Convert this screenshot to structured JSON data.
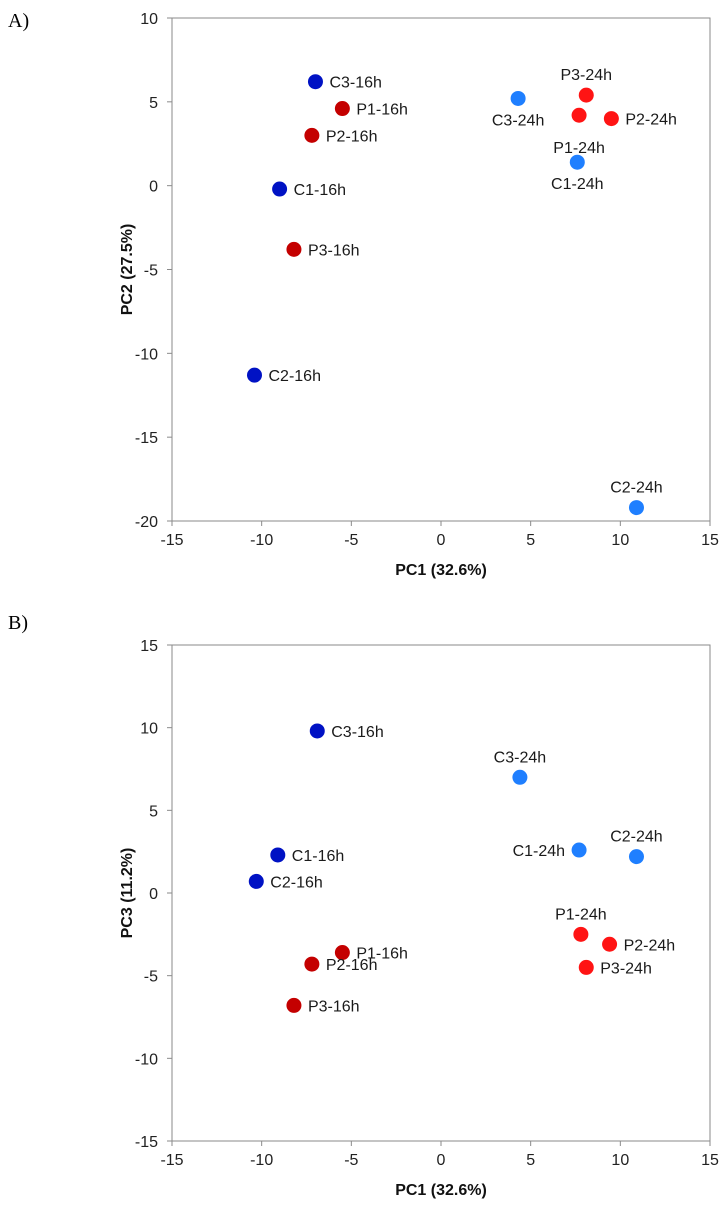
{
  "colors": {
    "control_16h": "#0012c4",
    "control_24h": "#1f7fff",
    "treated_16h": "#c40000",
    "treated_24h": "#ff1414",
    "axis": "#8a8a8a"
  },
  "chart_data": [
    {
      "type": "scatter",
      "panel_label": "A)",
      "title": "",
      "xlabel": "PC1 (32.6%)",
      "ylabel": "PC2 (27.5%)",
      "xlim": [
        -15,
        15
      ],
      "ylim": [
        -20,
        10
      ],
      "xticks": [
        -15,
        -10,
        -5,
        0,
        5,
        10,
        15
      ],
      "yticks": [
        -20,
        -15,
        -10,
        -5,
        0,
        5,
        10
      ],
      "grid": false,
      "legend": "none",
      "points": [
        {
          "label": "C3-16h",
          "x": -7.0,
          "y": 6.2,
          "color": "control_16h",
          "label_pos": "right"
        },
        {
          "label": "P1-16h",
          "x": -5.5,
          "y": 4.6,
          "color": "treated_16h",
          "label_pos": "right"
        },
        {
          "label": "P2-16h",
          "x": -7.2,
          "y": 3.0,
          "color": "treated_16h",
          "label_pos": "right"
        },
        {
          "label": "C1-16h",
          "x": -9.0,
          "y": -0.2,
          "color": "control_16h",
          "label_pos": "right"
        },
        {
          "label": "P3-16h",
          "x": -8.2,
          "y": -3.8,
          "color": "treated_16h",
          "label_pos": "right"
        },
        {
          "label": "C2-16h",
          "x": -10.4,
          "y": -11.3,
          "color": "control_16h",
          "label_pos": "right"
        },
        {
          "label": "C3-24h",
          "x": 4.3,
          "y": 5.2,
          "color": "control_24h",
          "label_pos": "below"
        },
        {
          "label": "P3-24h",
          "x": 8.1,
          "y": 5.4,
          "color": "treated_24h",
          "label_pos": "above"
        },
        {
          "label": "P1-24h",
          "x": 7.7,
          "y": 4.2,
          "color": "treated_24h",
          "label_pos": "below-far"
        },
        {
          "label": "P2-24h",
          "x": 9.5,
          "y": 4.0,
          "color": "treated_24h",
          "label_pos": "right"
        },
        {
          "label": "C1-24h",
          "x": 7.6,
          "y": 1.4,
          "color": "control_24h",
          "label_pos": "below"
        },
        {
          "label": "C2-24h",
          "x": 10.9,
          "y": -19.2,
          "color": "control_24h",
          "label_pos": "above"
        }
      ]
    },
    {
      "type": "scatter",
      "panel_label": "B)",
      "title": "",
      "xlabel": "PC1 (32.6%)",
      "ylabel": "PC3 (11.2%)",
      "xlim": [
        -15,
        15
      ],
      "ylim": [
        -15,
        15
      ],
      "xticks": [
        -15,
        -10,
        -5,
        0,
        5,
        10,
        15
      ],
      "yticks": [
        -15,
        -10,
        -5,
        0,
        5,
        10,
        15
      ],
      "grid": false,
      "legend": "none",
      "points": [
        {
          "label": "C3-16h",
          "x": -6.9,
          "y": 9.8,
          "color": "control_16h",
          "label_pos": "right"
        },
        {
          "label": "C1-16h",
          "x": -9.1,
          "y": 2.3,
          "color": "control_16h",
          "label_pos": "right"
        },
        {
          "label": "C2-16h",
          "x": -10.3,
          "y": 0.7,
          "color": "control_16h",
          "label_pos": "right"
        },
        {
          "label": "P1-16h",
          "x": -5.5,
          "y": -3.6,
          "color": "treated_16h",
          "label_pos": "right"
        },
        {
          "label": "P2-16h",
          "x": -7.2,
          "y": -4.3,
          "color": "treated_16h",
          "label_pos": "right"
        },
        {
          "label": "P3-16h",
          "x": -8.2,
          "y": -6.8,
          "color": "treated_16h",
          "label_pos": "right"
        },
        {
          "label": "C3-24h",
          "x": 4.4,
          "y": 7.0,
          "color": "control_24h",
          "label_pos": "above"
        },
        {
          "label": "C1-24h",
          "x": 7.7,
          "y": 2.6,
          "color": "control_24h",
          "label_pos": "left"
        },
        {
          "label": "C2-24h",
          "x": 10.9,
          "y": 2.2,
          "color": "control_24h",
          "label_pos": "above"
        },
        {
          "label": "P1-24h",
          "x": 7.8,
          "y": -2.5,
          "color": "treated_24h",
          "label_pos": "above"
        },
        {
          "label": "P2-24h",
          "x": 9.4,
          "y": -3.1,
          "color": "treated_24h",
          "label_pos": "right"
        },
        {
          "label": "P3-24h",
          "x": 8.1,
          "y": -4.5,
          "color": "treated_24h",
          "label_pos": "right"
        }
      ]
    }
  ]
}
